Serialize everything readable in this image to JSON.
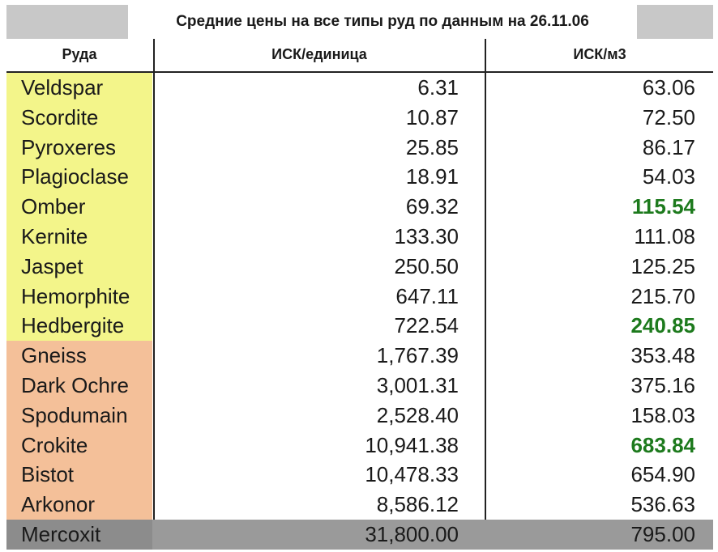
{
  "title": "Средние цены на все типы руд по данным на 26.11.06",
  "headers": {
    "ore": "Руда",
    "isk_unit": "ИСК/единица",
    "isk_m3": "ИСК/м3"
  },
  "colors": {
    "low_tier": "#f3f58a",
    "mid_tier": "#f4c099",
    "high_tier": "#8c8c8c",
    "highlight": "#1d7a1d"
  },
  "rows": [
    {
      "ore": "Veldspar",
      "isk_unit": "6.31",
      "isk_m3": "63.06",
      "tier": "low_tier",
      "highlight": false
    },
    {
      "ore": "Scordite",
      "isk_unit": "10.87",
      "isk_m3": "72.50",
      "tier": "low_tier",
      "highlight": false
    },
    {
      "ore": "Pyroxeres",
      "isk_unit": "25.85",
      "isk_m3": "86.17",
      "tier": "low_tier",
      "highlight": false
    },
    {
      "ore": "Plagioclase",
      "isk_unit": "18.91",
      "isk_m3": "54.03",
      "tier": "low_tier",
      "highlight": false
    },
    {
      "ore": "Omber",
      "isk_unit": "69.32",
      "isk_m3": "115.54",
      "tier": "low_tier",
      "highlight": true
    },
    {
      "ore": "Kernite",
      "isk_unit": "133.30",
      "isk_m3": "111.08",
      "tier": "low_tier",
      "highlight": false
    },
    {
      "ore": "Jaspet",
      "isk_unit": "250.50",
      "isk_m3": "125.25",
      "tier": "low_tier",
      "highlight": false
    },
    {
      "ore": "Hemorphite",
      "isk_unit": "647.11",
      "isk_m3": "215.70",
      "tier": "low_tier",
      "highlight": false
    },
    {
      "ore": "Hedbergite",
      "isk_unit": "722.54",
      "isk_m3": "240.85",
      "tier": "low_tier",
      "highlight": true
    },
    {
      "ore": "Gneiss",
      "isk_unit": "1,767.39",
      "isk_m3": "353.48",
      "tier": "mid_tier",
      "highlight": false
    },
    {
      "ore": "Dark Ochre",
      "isk_unit": "3,001.31",
      "isk_m3": "375.16",
      "tier": "mid_tier",
      "highlight": false
    },
    {
      "ore": "Spodumain",
      "isk_unit": "2,528.40",
      "isk_m3": "158.03",
      "tier": "mid_tier",
      "highlight": false
    },
    {
      "ore": "Crokite",
      "isk_unit": "10,941.38",
      "isk_m3": "683.84",
      "tier": "mid_tier",
      "highlight": true
    },
    {
      "ore": "Bistot",
      "isk_unit": "10,478.33",
      "isk_m3": "654.90",
      "tier": "mid_tier",
      "highlight": false
    },
    {
      "ore": "Arkonor",
      "isk_unit": "8,586.12",
      "isk_m3": "536.63",
      "tier": "mid_tier",
      "highlight": false
    },
    {
      "ore": "Mercoxit",
      "isk_unit": "31,800.00",
      "isk_m3": "795.00",
      "tier": "high_tier",
      "highlight": false
    }
  ]
}
